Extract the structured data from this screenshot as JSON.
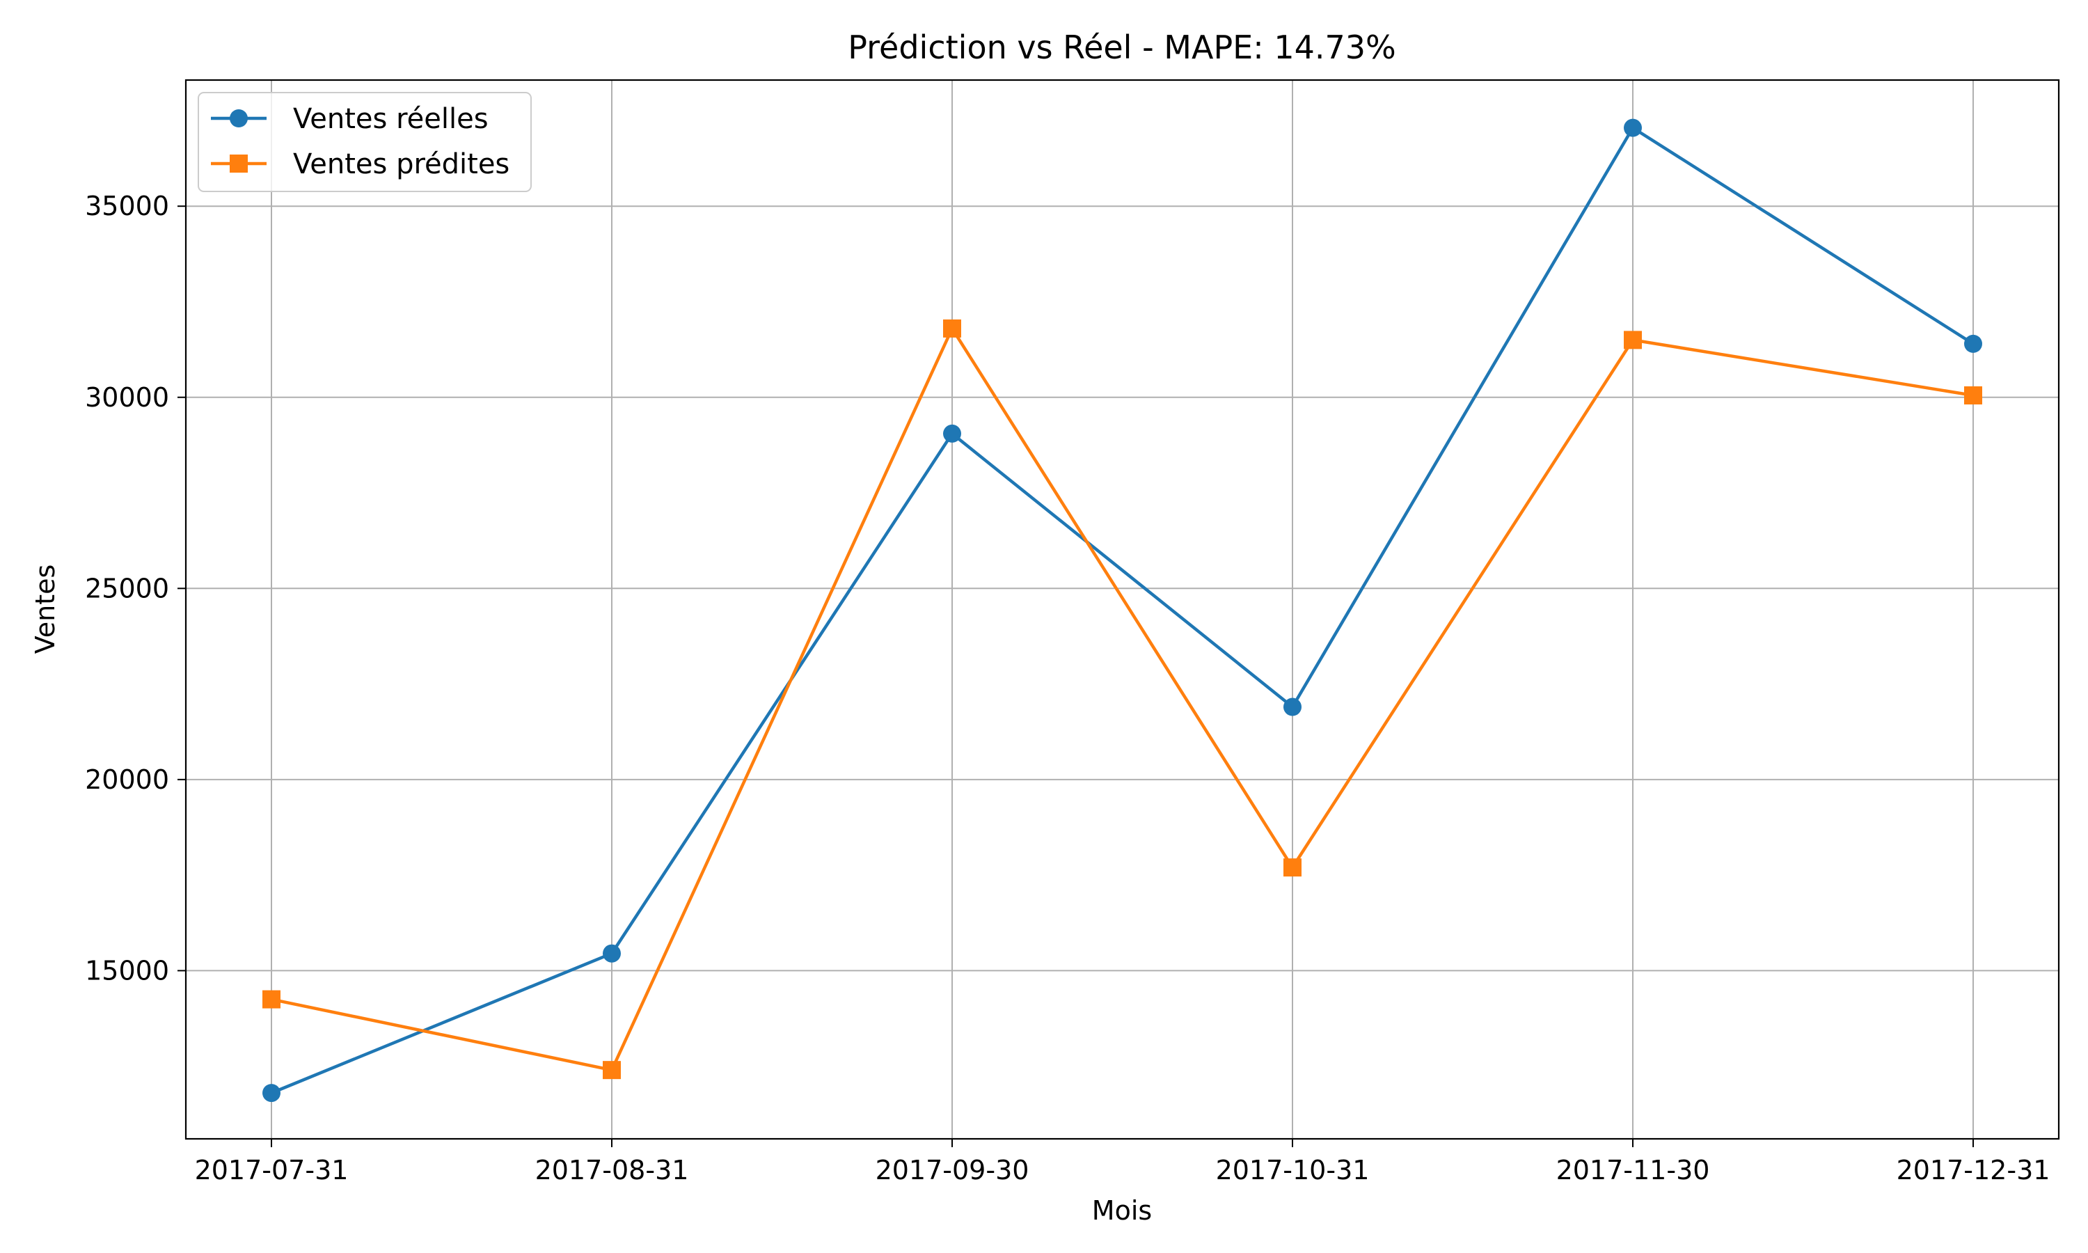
{
  "chart_data": {
    "type": "line",
    "title": "Prédiction vs Réel - MAPE: 14.73%",
    "xlabel": "Mois",
    "ylabel": "Ventes",
    "categories": [
      "2017-07-31",
      "2017-08-31",
      "2017-09-30",
      "2017-10-31",
      "2017-11-30",
      "2017-12-31"
    ],
    "ylim": [
      10600,
      38300
    ],
    "yticks": [
      15000,
      20000,
      25000,
      30000,
      35000
    ],
    "grid": true,
    "legend_position": "top-left",
    "series": [
      {
        "name": "Ventes réelles",
        "color": "#1f77b4",
        "marker": "circle",
        "values": [
          11800,
          15450,
          29050,
          21900,
          37050,
          31400
        ]
      },
      {
        "name": "Ventes prédites",
        "color": "#ff7f0e",
        "marker": "square",
        "values": [
          14250,
          12400,
          31800,
          17700,
          31500,
          30050
        ]
      }
    ]
  }
}
